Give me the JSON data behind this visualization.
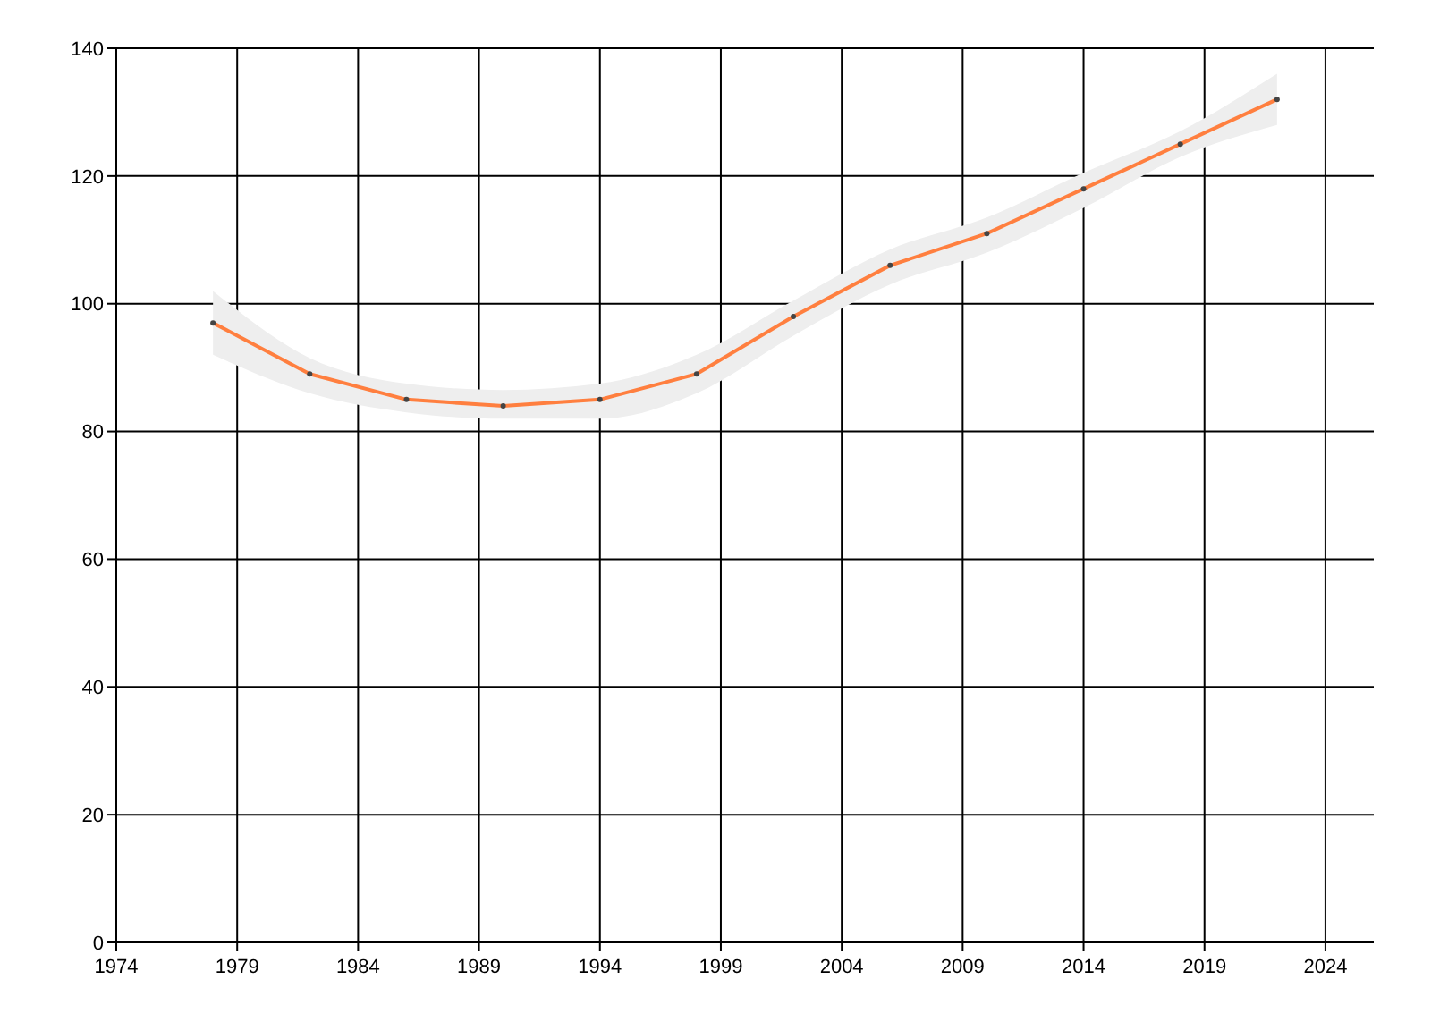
{
  "chart_data": {
    "type": "line",
    "x": [
      1978,
      1982,
      1986,
      1990,
      1994,
      1998,
      2002,
      2006,
      2010,
      2014,
      2018,
      2022
    ],
    "series": [
      {
        "color": "#ff7f3f",
        "values": [
          97,
          89,
          85,
          84,
          85,
          89,
          98,
          106,
          111,
          118,
          125,
          132
        ],
        "lower": [
          92,
          86,
          83,
          82,
          82,
          86,
          95,
          103,
          108,
          115,
          123,
          128
        ],
        "upper": [
          102,
          91.5,
          87.5,
          86.5,
          87.5,
          92,
          100.5,
          108.5,
          113.5,
          120.5,
          127,
          136
        ]
      }
    ],
    "xlim": [
      1974,
      2026
    ],
    "xticks": [
      1974,
      1979,
      1984,
      1989,
      1994,
      1999,
      2004,
      2009,
      2014,
      2019,
      2024
    ],
    "ylim": [
      0,
      140
    ],
    "yticks": [
      0,
      20,
      40,
      60,
      80,
      100,
      120,
      140
    ],
    "grid": true,
    "marker": "circle",
    "line_style": "solid"
  }
}
